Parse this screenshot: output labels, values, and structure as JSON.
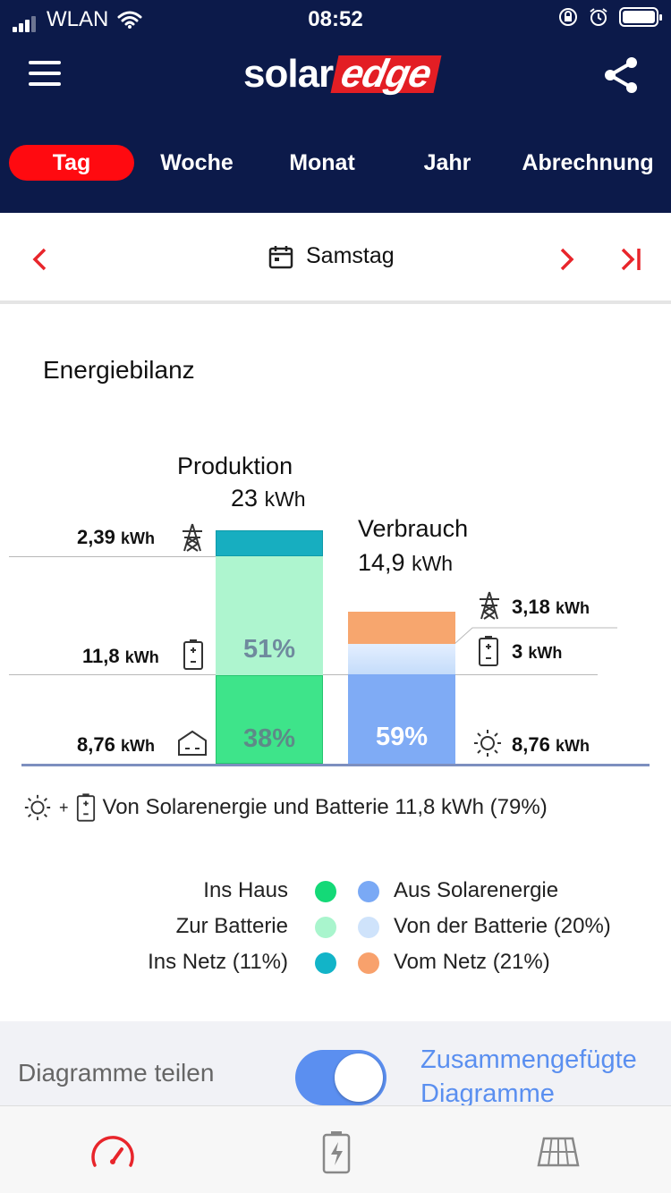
{
  "status_bar": {
    "carrier": "WLAN",
    "time": "08:52"
  },
  "header": {
    "logo_solar": "solar",
    "logo_edge": "edge"
  },
  "tabs": [
    {
      "label": "Tag",
      "active": true
    },
    {
      "label": "Woche",
      "active": false
    },
    {
      "label": "Monat",
      "active": false
    },
    {
      "label": "Jahr",
      "active": false
    },
    {
      "label": "Abrechnung",
      "active": false
    }
  ],
  "date_nav": {
    "label": "Samstag",
    "prev": "‹",
    "next": "›",
    "last": "›|"
  },
  "section_title": "Energiebilanz",
  "chart_data": {
    "type": "bar",
    "title": "Energiebilanz",
    "production": {
      "label": "Produktion",
      "total": "23",
      "unit": "kWh",
      "segments": [
        {
          "name": "Ins Haus",
          "value": 8.76,
          "value_label": "8,76",
          "unit": "kWh",
          "percent_label": "38%",
          "color": "#3ee48a"
        },
        {
          "name": "Zur Batterie",
          "value": 11.8,
          "value_label": "11,8",
          "unit": "kWh",
          "percent_label": "51%",
          "color": "#aef5cf"
        },
        {
          "name": "Ins Netz",
          "value": 2.39,
          "value_label": "2,39",
          "unit": "kWh",
          "percent_label": "",
          "color": "#17aec0"
        }
      ]
    },
    "consumption": {
      "label": "Verbrauch",
      "total": "14,9",
      "unit": "kWh",
      "segments": [
        {
          "name": "Aus Solarenergie",
          "value": 8.76,
          "value_label": "8,76",
          "unit": "kWh",
          "percent_label": "59%",
          "color": "#7fabf5"
        },
        {
          "name": "Von der Batterie",
          "value": 3,
          "value_label": "3",
          "unit": "kWh",
          "percent_label": "",
          "color": "#cfe3fb"
        },
        {
          "name": "Vom Netz",
          "value": 3.18,
          "value_label": "3,18",
          "unit": "kWh",
          "percent_label": "",
          "color": "#f7a66e"
        }
      ]
    }
  },
  "summary": {
    "text": "Von Solarenergie und Batterie 11,8 kWh (79%)",
    "plus": "+"
  },
  "legend": {
    "left": [
      {
        "label": "Ins Haus",
        "color": "#14d977"
      },
      {
        "label": "Zur Batterie",
        "color": "#a9f5cd"
      },
      {
        "label": "Ins Netz (11%)",
        "color": "#12b4c8"
      }
    ],
    "right": [
      {
        "label": "Aus Solarenergie",
        "color": "#7aa9f5"
      },
      {
        "label": "Von der Batterie (20%)",
        "color": "#cfe3fb"
      },
      {
        "label": "Vom Netz (21%)",
        "color": "#f8a16c"
      }
    ]
  },
  "split": {
    "label": "Diagramme teilen",
    "link": "Zusammengefügte Diagramme",
    "toggle_on": true
  },
  "colors": {
    "header_bg": "#0c1a4a",
    "accent_red": "#ff0a10",
    "link_blue": "#5a8ff0"
  },
  "bottom_nav": [
    {
      "name": "dashboard-gauge-icon"
    },
    {
      "name": "battery-icon"
    },
    {
      "name": "solar-panel-icon"
    }
  ]
}
